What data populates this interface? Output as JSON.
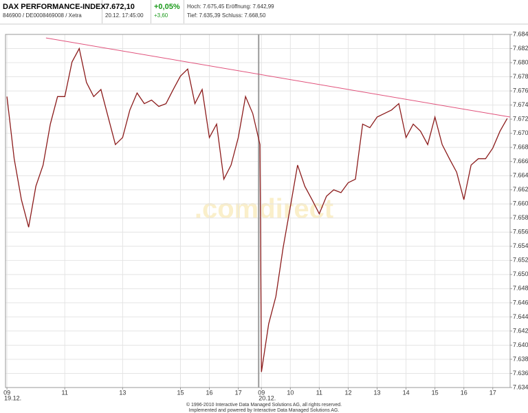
{
  "header": {
    "name": "DAX PERFORMANCE-INDEX",
    "ids": "846900 / DE0008469008 / Xetra",
    "price": "7.672,10",
    "time": "20.12. 17:45:00",
    "change_pct": "+0,05%",
    "change_abs": "+3,60",
    "high": "Hoch: 7.675,45",
    "open": "Eröffnung: 7.642,99",
    "low": "Tief: 7.635,39",
    "close": "Schluss: 7.668,50"
  },
  "chart_data": {
    "type": "line",
    "watermark": ".comdirect",
    "xlim": [
      8.95,
      26.4
    ],
    "ylim": [
      7634,
      7684
    ],
    "xticks": [
      {
        "value": 9,
        "label": "09"
      },
      11,
      13,
      15,
      16,
      17,
      {
        "value": 17.8,
        "label": "09"
      },
      {
        "value": 18.8,
        "label": "10"
      },
      {
        "value": 19.8,
        "label": "11"
      },
      {
        "value": 20.8,
        "label": "12"
      },
      {
        "value": 21.8,
        "label": "13"
      },
      {
        "value": 22.8,
        "label": "14"
      },
      {
        "value": 23.8,
        "label": "15"
      },
      {
        "value": 24.8,
        "label": "16"
      },
      {
        "value": 25.8,
        "label": "17"
      }
    ],
    "date_labels": [
      {
        "value": 9,
        "label": "19.12."
      },
      {
        "value": 17.8,
        "label": "20.12."
      }
    ],
    "yticks": [
      {
        "value": 7634,
        "label": "7.634"
      },
      {
        "value": 7636,
        "label": "7.636"
      },
      {
        "value": 7638,
        "label": "7.638"
      },
      {
        "value": 7640,
        "label": "7.640"
      },
      {
        "value": 7642,
        "label": "7.642"
      },
      {
        "value": 7644,
        "label": "7.644"
      },
      {
        "value": 7646,
        "label": "7.646"
      },
      {
        "value": 7648,
        "label": "7.648"
      },
      {
        "value": 7650,
        "label": "7.650"
      },
      {
        "value": 7652,
        "label": "7.652"
      },
      {
        "value": 7654,
        "label": "7.654"
      },
      {
        "value": 7656,
        "label": "7.656"
      },
      {
        "value": 7658,
        "label": "7.658"
      },
      {
        "value": 7660,
        "label": "7.660"
      },
      {
        "value": 7662,
        "label": "7.662"
      },
      {
        "value": 7664,
        "label": "7.664"
      },
      {
        "value": 7666,
        "label": "7.666"
      },
      {
        "value": 7668,
        "label": "7.668"
      },
      {
        "value": 7670,
        "label": "7.670"
      },
      {
        "value": 7672,
        "label": "7.672"
      },
      {
        "value": 7674,
        "label": "7.674"
      },
      {
        "value": 7676,
        "label": "7.676"
      },
      {
        "value": 7678,
        "label": "7.678"
      },
      {
        "value": 7680,
        "label": "7.680"
      },
      {
        "value": 7682,
        "label": "7.682"
      },
      {
        "value": 7684,
        "label": "7.684"
      }
    ],
    "grid": true,
    "series": [
      {
        "color": "#8b1a1a",
        "x": [
          9,
          9.25,
          9.5,
          9.75,
          10,
          10.25,
          10.5,
          10.75,
          11,
          11.25,
          11.5,
          11.75,
          12,
          12.25,
          12.5,
          12.75,
          13,
          13.25,
          13.5,
          13.75,
          14,
          14.25,
          14.5,
          14.75,
          15,
          15.25,
          15.5,
          15.75,
          16,
          16.25,
          16.5,
          16.75,
          17,
          17.25,
          17.5,
          17.75,
          17.8,
          18.05,
          18.3,
          18.55,
          18.8,
          19.05,
          19.3,
          19.55,
          19.8,
          20.05,
          20.3,
          20.55,
          20.8,
          21.05,
          21.3,
          21.55,
          21.8,
          22.05,
          22.3,
          22.55,
          22.8,
          23.05,
          23.3,
          23.55,
          23.8,
          24.05,
          24.3,
          24.55,
          24.8,
          25.05,
          25.3,
          25.55,
          25.8,
          26.05,
          26.3
        ],
        "values": [
          7675.2,
          7666.4,
          7660.6,
          7656.7,
          7662.5,
          7665.5,
          7671.3,
          7675.2,
          7675.2,
          7680.1,
          7682.0,
          7677.2,
          7675.2,
          7676.2,
          7672.3,
          7668.4,
          7669.4,
          7673.3,
          7675.7,
          7674.2,
          7674.7,
          7673.8,
          7674.2,
          7676.2,
          7678.1,
          7679.1,
          7674.2,
          7676.2,
          7669.4,
          7671.3,
          7663.5,
          7665.5,
          7669.4,
          7675.2,
          7672.8,
          7668.4,
          7636.2,
          7643.0,
          7646.9,
          7653.8,
          7659.6,
          7665.5,
          7662.5,
          7660.6,
          7658.6,
          7661.1,
          7662.0,
          7661.6,
          7663.0,
          7663.5,
          7671.3,
          7670.8,
          7672.3,
          7672.8,
          7673.3,
          7674.2,
          7669.4,
          7671.3,
          7670.3,
          7668.4,
          7672.3,
          7668.4,
          7666.4,
          7664.5,
          7660.6,
          7665.5,
          7666.4,
          7666.4,
          7667.9,
          7670.3,
          7672.1
        ]
      }
    ],
    "trendline": {
      "color": "#e0507a",
      "x": [
        10.35,
        26.4
      ],
      "values": [
        7683.5,
        7672.3
      ]
    }
  },
  "footer": [
    "© 1996-2010 Interactive Data Managed Solutions AG, all rights reserved.",
    "Implemented and powered by Interactive Data Managed Solutions AG."
  ]
}
